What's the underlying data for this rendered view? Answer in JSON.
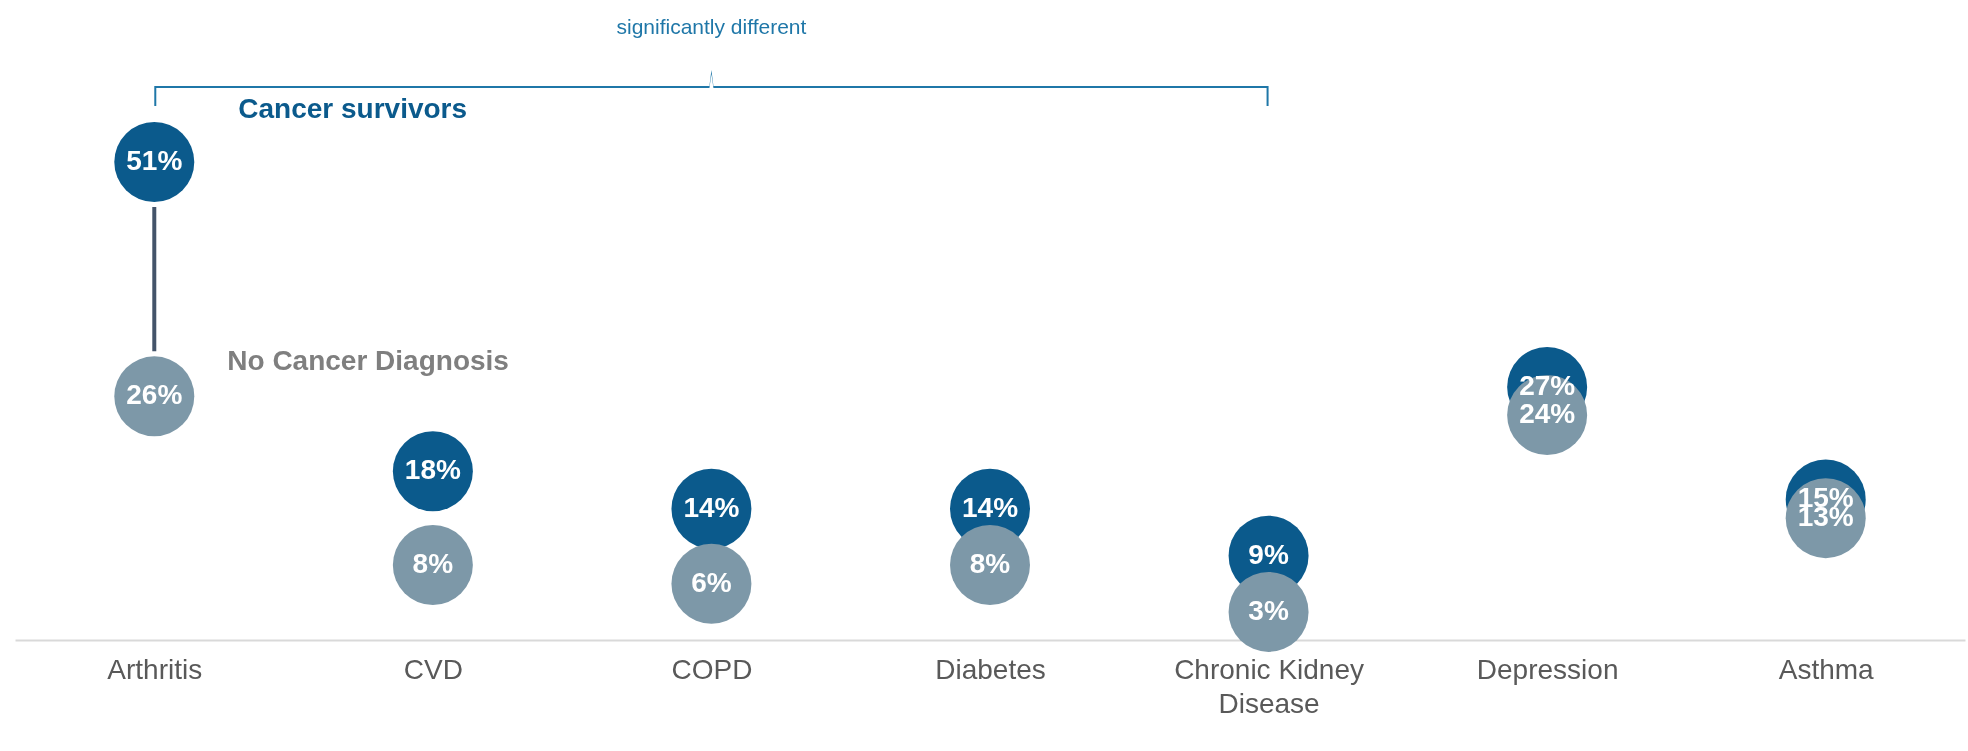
{
  "chart_data": {
    "type": "scatter",
    "categories": [
      "Arthritis",
      "CVD",
      "COPD",
      "Diabetes",
      "Chronic Kidney Disease",
      "Depression",
      "Asthma"
    ],
    "series": [
      {
        "name": "Cancer survivors",
        "color": "#0b5a8c",
        "values": [
          51,
          18,
          14,
          14,
          9,
          27,
          15
        ],
        "value_labels": [
          "51%",
          "18%",
          "14%",
          "14%",
          "9%",
          "27%",
          "15%"
        ]
      },
      {
        "name": "No Cancer Diagnosis",
        "color": "#7d98a8",
        "values": [
          26,
          8,
          6,
          8,
          3,
          24,
          13
        ],
        "value_labels": [
          "26%",
          "8%",
          "6%",
          "8%",
          "3%",
          "24%",
          "13%"
        ]
      }
    ],
    "annotations": [
      "significantly different"
    ],
    "marker": "circle",
    "legend": false,
    "tick_labels": "x"
  }
}
